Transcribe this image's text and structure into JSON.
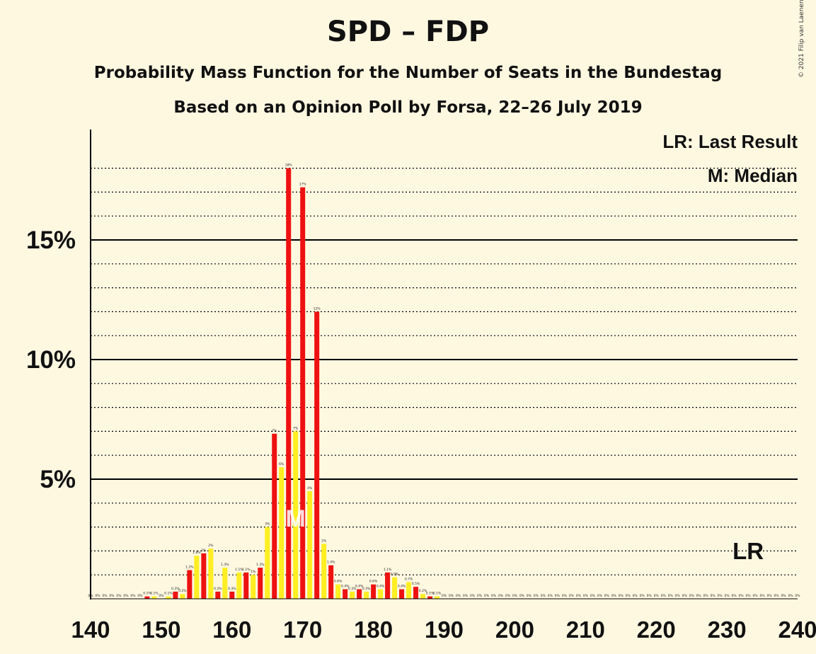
{
  "title": "SPD – FDP",
  "subtitle1": "Probability Mass Function for the Number of Seats in the Bundestag",
  "subtitle2": "Based on an Opinion Poll by Forsa, 22–26 July 2019",
  "copyright": "© 2021 Filip van Laenen",
  "legend": {
    "last_result": "LR: Last Result",
    "median": "M: Median"
  },
  "markers": {
    "median_symbol": "M",
    "median_seat": 169,
    "last_result_symbol": "LR",
    "last_result_seat": 233
  },
  "colors": {
    "background": "#FFF8E1",
    "red": "#EE1111",
    "yellow": "#FFEE22",
    "axis": "#000000"
  },
  "chart_data": {
    "type": "bar",
    "xlim": [
      140,
      240
    ],
    "ylim": [
      0,
      19.5
    ],
    "x_ticks": [
      140,
      150,
      160,
      170,
      180,
      190,
      200,
      210,
      220,
      230,
      240
    ],
    "x_tick_labels": [
      "140",
      "150",
      "160",
      "170",
      "180",
      "190",
      "200",
      "210",
      "220",
      "230",
      "240"
    ],
    "y_ticks": [
      5,
      10,
      15
    ],
    "y_tick_labels": [
      "5%",
      "10%",
      "15%"
    ],
    "minor_gridlines": [
      1,
      2,
      3,
      4,
      6,
      7,
      8,
      9,
      11,
      12,
      13,
      14,
      16,
      17,
      18
    ],
    "x": [
      140,
      141,
      142,
      143,
      144,
      145,
      146,
      147,
      148,
      149,
      150,
      151,
      152,
      153,
      154,
      155,
      156,
      157,
      158,
      159,
      160,
      161,
      162,
      163,
      164,
      165,
      166,
      167,
      168,
      169,
      170,
      171,
      172,
      173,
      174,
      175,
      176,
      177,
      178,
      179,
      180,
      181,
      182,
      183,
      184,
      185,
      186,
      187,
      188,
      189,
      190,
      191,
      192,
      193,
      194,
      195,
      196,
      197,
      198,
      199,
      200,
      201,
      202,
      203,
      204,
      205,
      206,
      207,
      208,
      209,
      210,
      211,
      212,
      213,
      214,
      215,
      216,
      217,
      218,
      219,
      220,
      221,
      222,
      223,
      224,
      225,
      226,
      227,
      228,
      229,
      230,
      231,
      232,
      233,
      234,
      235,
      236,
      237,
      238,
      239,
      240
    ],
    "values": [
      0,
      0,
      0,
      0,
      0,
      0,
      0,
      0,
      0.1,
      0.1,
      0,
      0.1,
      0.3,
      0.2,
      1.2,
      1.8,
      1.9,
      2.1,
      0.3,
      1.3,
      0.3,
      1.1,
      1.1,
      1,
      1.3,
      3,
      6.9,
      5.5,
      18,
      7,
      17.2,
      4.5,
      12,
      2.3,
      1.4,
      0.6,
      0.4,
      0.3,
      0.4,
      0.3,
      0.6,
      0.4,
      1.1,
      0.9,
      0.4,
      0.7,
      0.5,
      0.2,
      0.1,
      0.1,
      0,
      0,
      0,
      0,
      0,
      0,
      0,
      0,
      0,
      0,
      0,
      0,
      0,
      0,
      0,
      0,
      0,
      0,
      0,
      0,
      0,
      0,
      0,
      0,
      0,
      0,
      0,
      0,
      0,
      0,
      0,
      0,
      0,
      0,
      0,
      0,
      0,
      0,
      0,
      0,
      0,
      0,
      0,
      0,
      0,
      0,
      0,
      0,
      0,
      0,
      0
    ],
    "labels": [
      "0%",
      "0%",
      "0%",
      "0%",
      "0%",
      "0%",
      "0%",
      "0%",
      "0.1%",
      "0.1%",
      "0%",
      "0.1%",
      "0.3%",
      "0.2%",
      "1.2%",
      "1.8%",
      "2%",
      "2%",
      "0.3%",
      "1.3%",
      "0.3%",
      "1.1%",
      "1.1%",
      "1%",
      "1.3%",
      "3%",
      "7%",
      "6%",
      "18%",
      "7%",
      "17%",
      "4%",
      "12%",
      "2%",
      "1.4%",
      "0.6%",
      "0.4%",
      "0.3%",
      "0.4%",
      "0.3%",
      "0.6%",
      "0.4%",
      "1.1%",
      "0.9%",
      "0.4%",
      "0.7%",
      "0.5%",
      "0.2%",
      "0.1%",
      "0.1%",
      "0%",
      "0%",
      "0%",
      "0%",
      "0%",
      "0%",
      "0%",
      "0%",
      "0%",
      "0%",
      "0%",
      "0%",
      "0%",
      "0%",
      "0%",
      "0%",
      "0%",
      "0%",
      "0%",
      "0%",
      "0%",
      "0%",
      "0%",
      "0%",
      "0%",
      "0%",
      "0%",
      "0%",
      "0%",
      "0%",
      "0%",
      "0%",
      "0%",
      "0%",
      "0%",
      "0%",
      "0%",
      "0%",
      "0%",
      "0%",
      "0%",
      "0%",
      "0%",
      "0%",
      "0%",
      "0%",
      "0%",
      "0%",
      "0%",
      "0%",
      "0%"
    ],
    "color_pattern": "even seats red, odd seats yellow",
    "grid": true,
    "legend_position": "top-right"
  }
}
